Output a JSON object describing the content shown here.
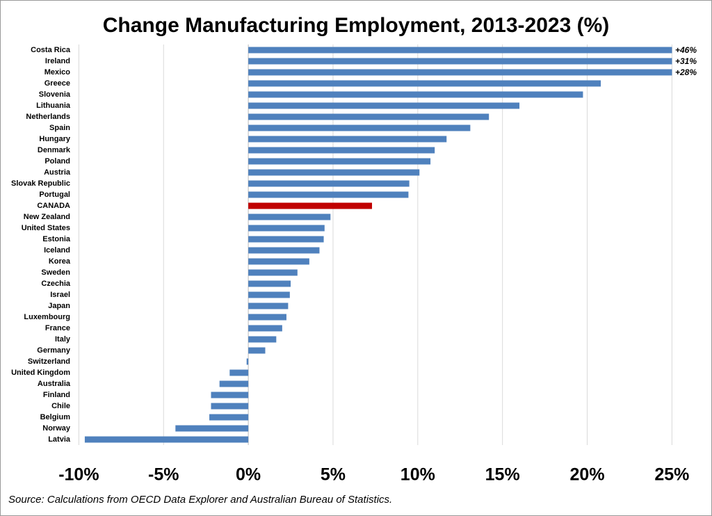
{
  "chart_data": {
    "type": "bar",
    "orientation": "horizontal",
    "title": "Change Manufacturing Employment, 2013-2023 (%)",
    "source": "Source: Calculations from OECD Data Explorer and Australian Bureau of Statistics.",
    "categories": [
      "Costa Rica",
      "Ireland",
      "Mexico",
      "Greece",
      "Slovenia",
      "Lithuania",
      "Netherlands",
      "Spain",
      "Hungary",
      "Denmark",
      "Poland",
      "Austria",
      "Slovak Republic",
      "Portugal",
      "CANADA",
      "New Zealand",
      "United States",
      "Estonia",
      "Iceland",
      "Korea",
      "Sweden",
      "Czechia",
      "Israel",
      "Japan",
      "Luxembourg",
      "France",
      "Italy",
      "Germany",
      "Switzerland",
      "United Kingdom",
      "Australia",
      "Finland",
      "Chile",
      "Belgium",
      "Norway",
      "Latvia"
    ],
    "values": [
      46,
      31,
      28,
      20.8,
      19.75,
      16.0,
      14.2,
      13.1,
      11.7,
      11.0,
      10.75,
      10.1,
      9.5,
      9.45,
      7.3,
      4.85,
      4.5,
      4.45,
      4.2,
      3.6,
      2.9,
      2.5,
      2.45,
      2.35,
      2.25,
      2.0,
      1.65,
      1.0,
      -0.1,
      -1.1,
      -1.7,
      -2.2,
      -2.2,
      -2.3,
      -4.3,
      -9.65
    ],
    "value_labels": [
      "+46%",
      "+31%",
      "+28%",
      null,
      null,
      null,
      null,
      null,
      null,
      null,
      null,
      null,
      null,
      null,
      null,
      null,
      null,
      null,
      null,
      null,
      null,
      null,
      null,
      null,
      null,
      null,
      null,
      null,
      null,
      null,
      null,
      null,
      null,
      null,
      null,
      null
    ],
    "colors": [
      "#4f81bd",
      "#4f81bd",
      "#4f81bd",
      "#4f81bd",
      "#4f81bd",
      "#4f81bd",
      "#4f81bd",
      "#4f81bd",
      "#4f81bd",
      "#4f81bd",
      "#4f81bd",
      "#4f81bd",
      "#4f81bd",
      "#4f81bd",
      "#c00000",
      "#4f81bd",
      "#4f81bd",
      "#4f81bd",
      "#4f81bd",
      "#4f81bd",
      "#4f81bd",
      "#4f81bd",
      "#4f81bd",
      "#4f81bd",
      "#4f81bd",
      "#4f81bd",
      "#4f81bd",
      "#4f81bd",
      "#4f81bd",
      "#4f81bd",
      "#4f81bd",
      "#4f81bd",
      "#4f81bd",
      "#4f81bd",
      "#4f81bd",
      "#4f81bd"
    ],
    "xlim": [
      -10,
      25
    ],
    "xticks": [
      {
        "value": -10,
        "label": "-10%"
      },
      {
        "value": -5,
        "label": "-5%"
      },
      {
        "value": 0,
        "label": "0%"
      },
      {
        "value": 5,
        "label": "5%"
      },
      {
        "value": 10,
        "label": "10%"
      },
      {
        "value": 15,
        "label": "15%"
      },
      {
        "value": 20,
        "label": "20%"
      },
      {
        "value": 25,
        "label": "25%"
      }
    ],
    "grid": true
  }
}
